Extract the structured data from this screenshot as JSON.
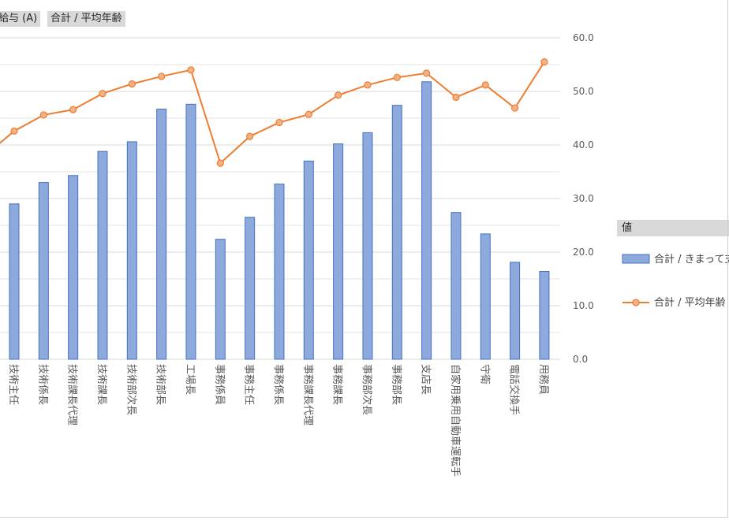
{
  "field_buttons": [
    "給与 (A)",
    "合計 / 平均年齢"
  ],
  "legend": {
    "header": "値",
    "items": [
      {
        "label": "合計 / きまって支給する現金給与額",
        "type": "bar",
        "color": "#8ea9db",
        "border": "#4472c4"
      },
      {
        "label": "合計 / 平均年齢",
        "type": "line",
        "color": "#ed7d31"
      }
    ]
  },
  "chart_data": {
    "type": "bar+line",
    "categories": [
      "技術主任",
      "技術係長",
      "技術課長代理",
      "技術課長",
      "技術部次長",
      "技術部長",
      "工場長",
      "事務係員",
      "事務主任",
      "事務係長",
      "事務課長代理",
      "事務課長",
      "事務部次長",
      "事務部長",
      "支店長",
      "自家用乗用自動車運転手",
      "守衛",
      "電話交換手",
      "用務員"
    ],
    "y2_ticks": [
      "0.0",
      "10.0",
      "20.0",
      "30.0",
      "40.0",
      "50.0",
      "60.0"
    ],
    "y2lim": [
      0,
      60
    ],
    "series": [
      {
        "name": "合計 / きまって支給する現金給与額",
        "type": "bar",
        "values": [
          29.0,
          33.0,
          34.3,
          38.8,
          40.6,
          46.7,
          47.6,
          22.4,
          26.5,
          32.7,
          37.0,
          40.2,
          42.3,
          47.4,
          51.8,
          27.4,
          23.4,
          18.1,
          16.4
        ]
      },
      {
        "name": "合計 / 平均年齢",
        "type": "line",
        "axis": "secondary",
        "values": [
          42.6,
          45.6,
          46.6,
          49.6,
          51.4,
          52.8,
          54.0,
          36.6,
          41.6,
          44.2,
          45.7,
          49.3,
          51.2,
          52.6,
          53.4,
          48.9,
          51.2,
          46.9,
          55.5
        ]
      }
    ],
    "line_offscreen_start": 38.0,
    "grid": true,
    "legend_position": "right"
  }
}
